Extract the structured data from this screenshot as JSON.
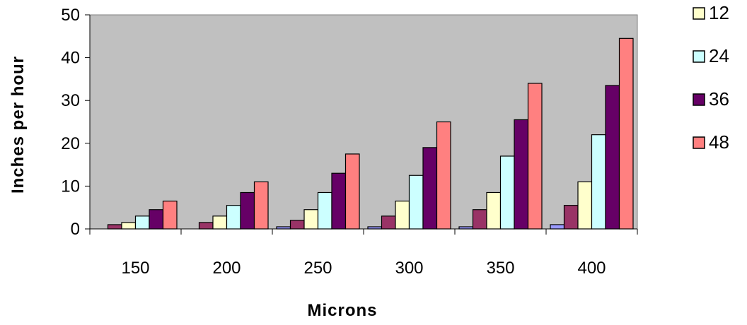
{
  "chart_data": {
    "type": "bar",
    "xlabel": "Microns",
    "ylabel": "Inches per hour",
    "categories": [
      "150",
      "200",
      "250",
      "300",
      "350",
      "400"
    ],
    "ylim": [
      0,
      50
    ],
    "yticks": [
      "0",
      "10",
      "20",
      "30",
      "40",
      "50"
    ],
    "grid": false,
    "legend": "right",
    "plot_background": "#c0c0c0",
    "series": [
      {
        "name": "",
        "color": "#9999ff",
        "values": [
          0,
          0,
          0.5,
          0.5,
          0.5,
          1
        ]
      },
      {
        "name": "",
        "color": "#993366",
        "values": [
          1,
          1.5,
          2,
          3,
          4.5,
          5.5
        ]
      },
      {
        "name": "12",
        "color": "#ffffcc",
        "values": [
          1.5,
          3,
          4.5,
          6.5,
          8.5,
          11
        ]
      },
      {
        "name": "24",
        "color": "#ccffff",
        "values": [
          3,
          5.5,
          8.5,
          12.5,
          17,
          22
        ]
      },
      {
        "name": "36",
        "color": "#660066",
        "values": [
          4.5,
          8.5,
          13,
          19,
          25.5,
          33.5
        ]
      },
      {
        "name": "48",
        "color": "#ff8080",
        "values": [
          6.5,
          11,
          17.5,
          25,
          34,
          44.5
        ]
      }
    ]
  }
}
